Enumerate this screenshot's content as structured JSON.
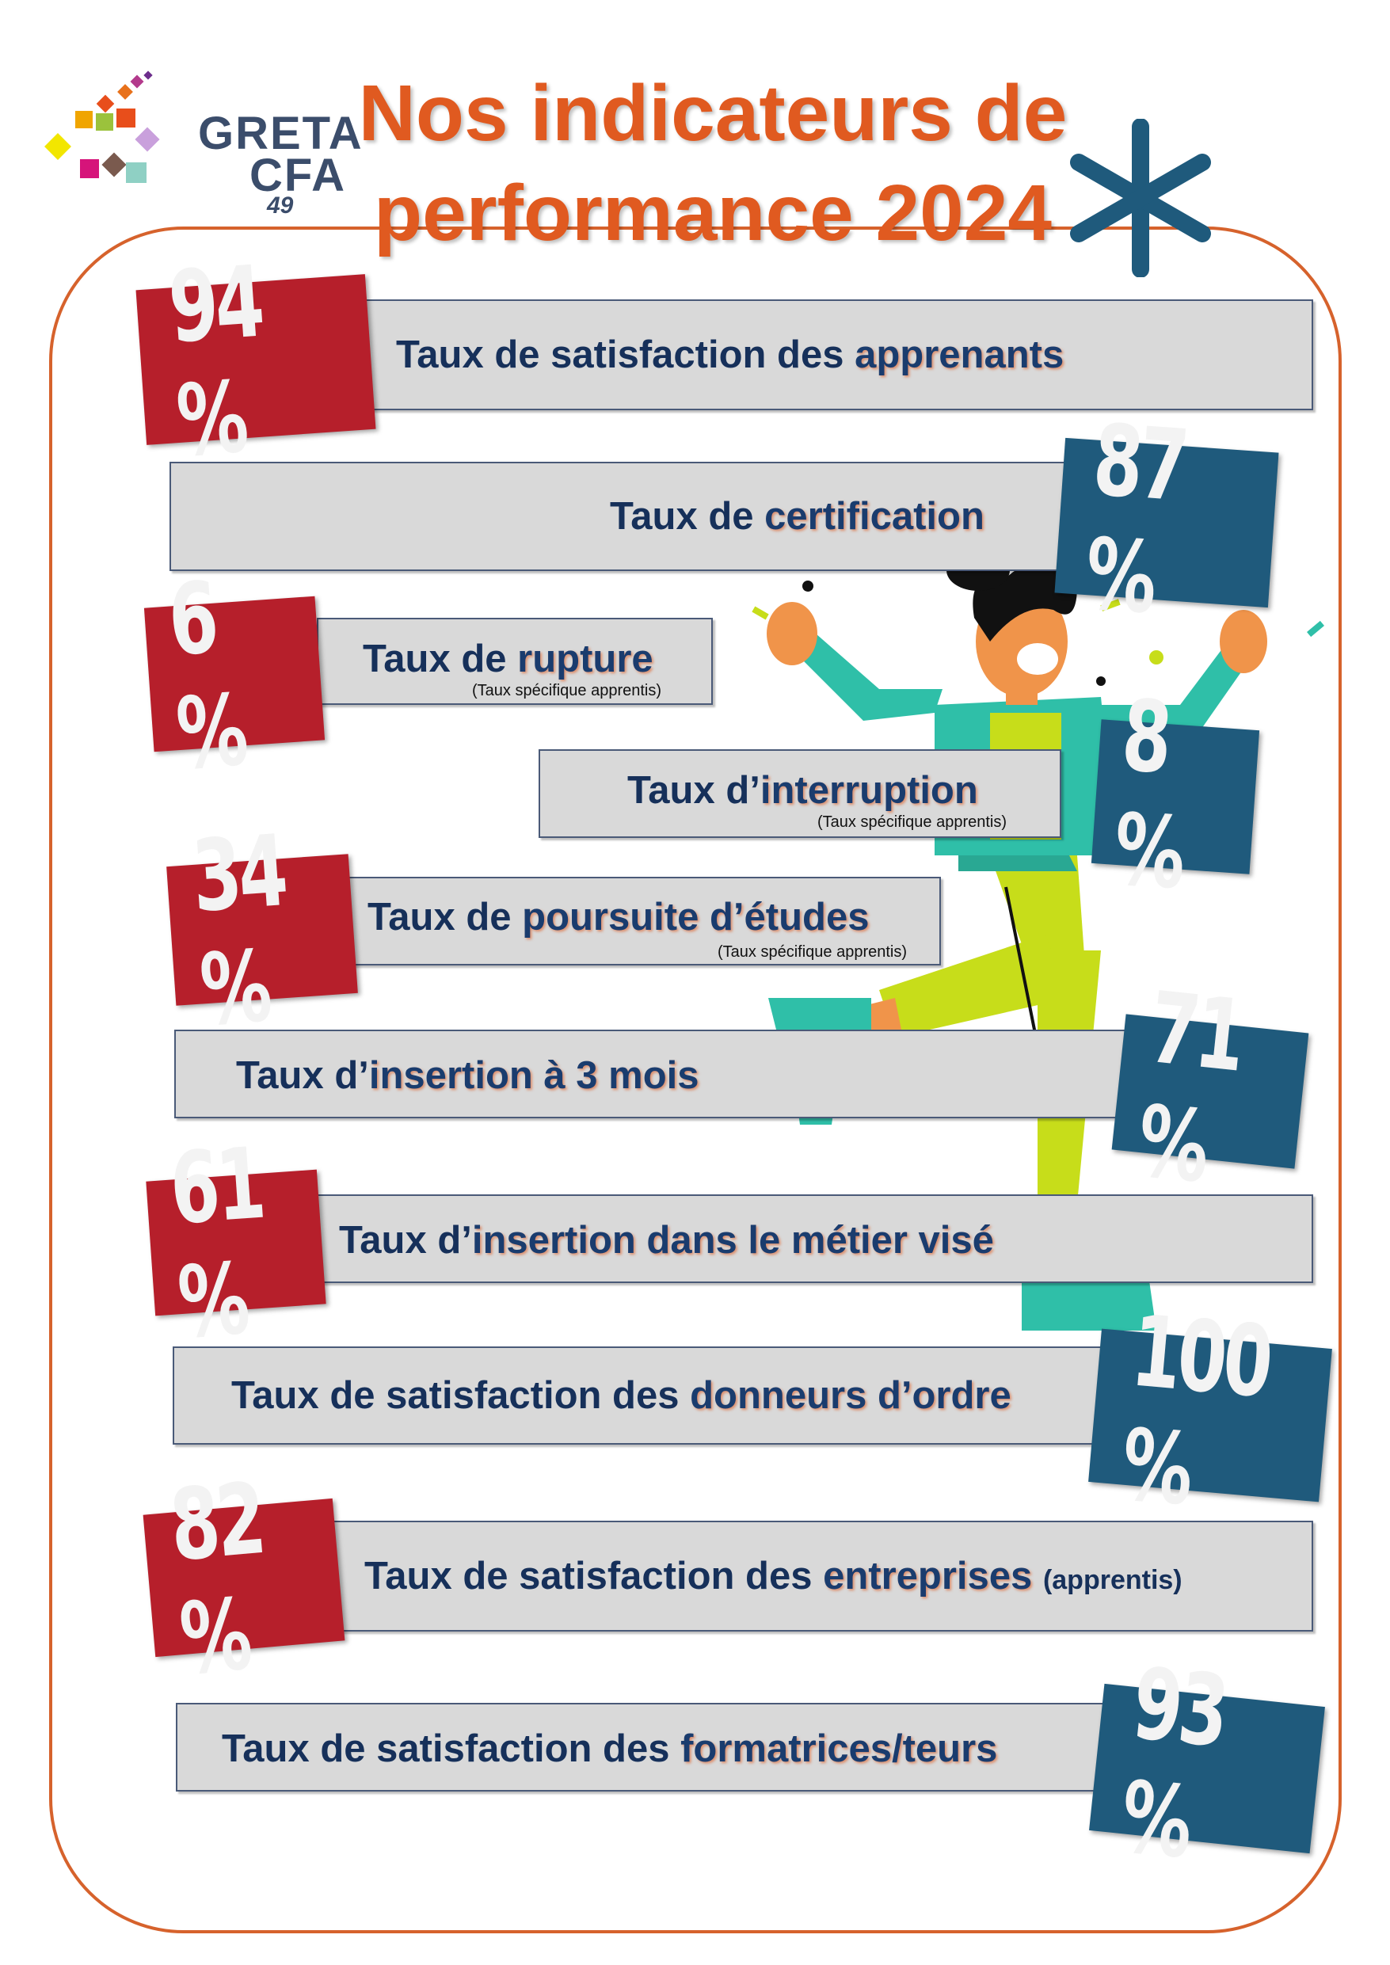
{
  "logo": {
    "line1": "GRETA",
    "line2": "CFA",
    "line3": "49"
  },
  "title": {
    "line1": "Nos indicateurs de",
    "line2": "performance 2024"
  },
  "colors": {
    "accent": "#e05a20",
    "red_badge": "#b61f2b",
    "blue_badge": "#1f5a7c",
    "text": "#16305a",
    "bar": "#d9d9d9"
  },
  "indicators": [
    {
      "value": "94 %",
      "prefix": "Taux de satisfaction des ",
      "highlight": "apprenants",
      "suffix": "",
      "note": "",
      "badge_color": "red"
    },
    {
      "value": "87 %",
      "prefix": "Taux de ",
      "highlight": "certification",
      "suffix": "",
      "note": "",
      "badge_color": "blue"
    },
    {
      "value": "6 %",
      "prefix": "Taux de ",
      "highlight": "rupture",
      "suffix": "",
      "note": "(Taux spécifique apprentis)",
      "badge_color": "red"
    },
    {
      "value": "8 %",
      "prefix": "Taux d’",
      "highlight": "interruption",
      "suffix": "",
      "note": "(Taux spécifique apprentis)",
      "badge_color": "blue"
    },
    {
      "value": "34 %",
      "prefix": "Taux de ",
      "highlight": "poursuite d’études",
      "suffix": "",
      "note": "(Taux spécifique apprentis)",
      "badge_color": "red"
    },
    {
      "value": "71 %",
      "prefix": "Taux d’",
      "highlight": "insertion à 3 mois",
      "suffix": "",
      "note": "",
      "badge_color": "blue"
    },
    {
      "value": "61 %",
      "prefix": "Taux d’",
      "highlight": "insertion dans le métier visé",
      "suffix": "",
      "note": "",
      "badge_color": "red"
    },
    {
      "value": "100 %",
      "prefix": "Taux de satisfaction des ",
      "highlight": "donneurs d’ordre",
      "suffix": "",
      "note": "",
      "badge_color": "blue"
    },
    {
      "value": "82 %",
      "prefix": "Taux de satisfaction des ",
      "highlight": "entreprises",
      "suffix": "(apprentis)",
      "note": "",
      "badge_color": "red"
    },
    {
      "value": "93 %",
      "prefix": "Taux de satisfaction des ",
      "highlight": "formatrices/teurs",
      "suffix": "",
      "note": "",
      "badge_color": "blue"
    }
  ]
}
